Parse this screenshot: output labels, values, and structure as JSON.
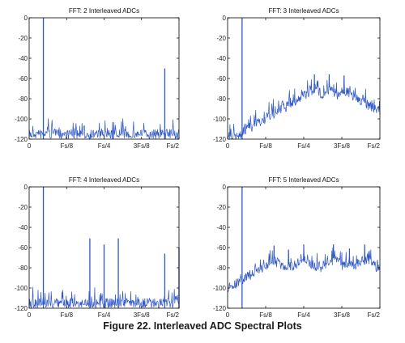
{
  "caption": "Figure 22. Interleaved ADC Spectral Plots",
  "colors": {
    "trace": "#2f57c8",
    "axis": "#000000",
    "background": "#ffffff"
  },
  "chart_data": [
    {
      "type": "line",
      "title": "FFT: 2 Interleaved ADCs",
      "xlabel": "",
      "ylabel": "",
      "xlim": [
        0,
        1
      ],
      "ylim": [
        -120,
        0
      ],
      "x_ticks": [
        0,
        0.25,
        0.5,
        0.75,
        1.0
      ],
      "x_tick_labels": [
        "0",
        "Fs/8",
        "Fs/4",
        "3Fs/8",
        "Fs/2"
      ],
      "y_ticks": [
        0,
        -20,
        -40,
        -60,
        -80,
        -100,
        -120
      ],
      "y_tick_labels": [
        "0",
        "-20",
        "-40",
        "-60",
        "-80",
        "-100",
        "-120"
      ],
      "grid": false,
      "noise_floor_db": -110,
      "series": [
        {
          "tones": [
            {
              "x": 0.095,
              "y": 0
            },
            {
              "x": 0.905,
              "y": -50
            }
          ],
          "spurs": []
        }
      ]
    },
    {
      "type": "line",
      "title": "FFT: 3 Interleaved ADCs",
      "xlabel": "",
      "ylabel": "",
      "xlim": [
        0,
        1
      ],
      "ylim": [
        -120,
        0
      ],
      "x_ticks": [
        0,
        0.25,
        0.5,
        0.75,
        1.0
      ],
      "x_tick_labels": [
        "0",
        "Fs/8",
        "Fs/4",
        "3Fs/8",
        "Fs/2"
      ],
      "y_ticks": [
        0,
        -20,
        -40,
        -60,
        -80,
        -100,
        -120
      ],
      "y_tick_labels": [
        "0",
        "-20",
        "-40",
        "-60",
        "-80",
        "-100",
        "-120"
      ],
      "grid": false,
      "noise_floor_db": -113,
      "series": [
        {
          "tones": [
            {
              "x": 0.095,
              "y": 0
            }
          ],
          "spurs": [
            {
              "x": 0.57,
              "y": -56
            },
            {
              "x": 0.667,
              "y": -56
            },
            {
              "x": 0.765,
              "y": -57
            }
          ]
        }
      ]
    },
    {
      "type": "line",
      "title": "FFT: 4 Interleaved ADCs",
      "xlabel": "",
      "ylabel": "",
      "xlim": [
        0,
        1
      ],
      "ylim": [
        -120,
        0
      ],
      "x_ticks": [
        0,
        0.25,
        0.5,
        0.75,
        1.0
      ],
      "x_tick_labels": [
        "0",
        "Fs/8",
        "Fs/4",
        "3Fs/8",
        "Fs/2"
      ],
      "y_ticks": [
        0,
        -20,
        -40,
        -60,
        -80,
        -100,
        -120
      ],
      "y_tick_labels": [
        "0",
        "-20",
        "-40",
        "-60",
        "-80",
        "-100",
        "-120"
      ],
      "grid": false,
      "noise_floor_db": -110,
      "series": [
        {
          "tones": [
            {
              "x": 0.095,
              "y": 0
            },
            {
              "x": 0.405,
              "y": -51
            },
            {
              "x": 0.5,
              "y": -57
            },
            {
              "x": 0.595,
              "y": -51
            },
            {
              "x": 0.905,
              "y": -66
            },
            {
              "x": 1.0,
              "y": -60
            }
          ],
          "spurs": []
        }
      ]
    },
    {
      "type": "line",
      "title": "FFT: 5 Interleaved ADCs",
      "xlabel": "",
      "ylabel": "",
      "xlim": [
        0,
        1
      ],
      "ylim": [
        -120,
        0
      ],
      "x_ticks": [
        0,
        0.25,
        0.5,
        0.75,
        1.0
      ],
      "x_tick_labels": [
        "0",
        "Fs/8",
        "Fs/4",
        "3Fs/8",
        "Fs/2"
      ],
      "y_ticks": [
        0,
        -20,
        -40,
        -60,
        -80,
        -100,
        -120
      ],
      "y_tick_labels": [
        "0",
        "-20",
        "-40",
        "-60",
        "-80",
        "-100",
        "-120"
      ],
      "grid": false,
      "noise_floor_db": -114,
      "series": [
        {
          "tones": [
            {
              "x": 0.095,
              "y": 0
            }
          ],
          "spurs": [
            {
              "x": 0.305,
              "y": -58
            },
            {
              "x": 0.4,
              "y": -62
            },
            {
              "x": 0.5,
              "y": -57
            },
            {
              "x": 0.695,
              "y": -57
            },
            {
              "x": 0.8,
              "y": -61
            },
            {
              "x": 0.9,
              "y": -57
            }
          ]
        }
      ]
    }
  ]
}
